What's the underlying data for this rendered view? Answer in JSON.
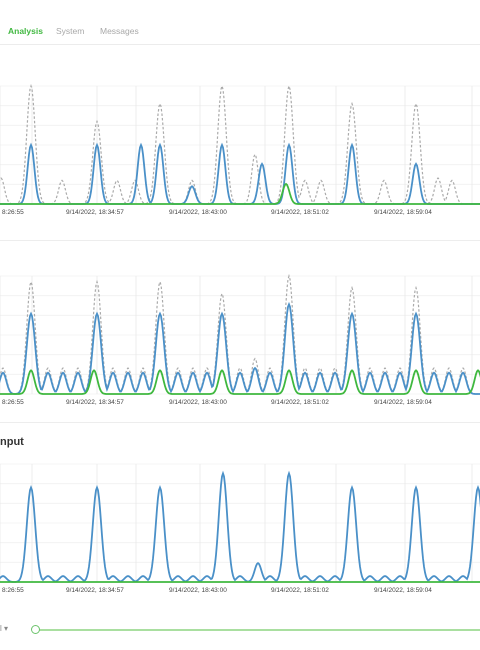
{
  "tabs": [
    {
      "label": "Analysis",
      "active": true
    },
    {
      "label": "System",
      "active": false
    },
    {
      "label": "Messages",
      "active": false
    }
  ],
  "panels": [
    {
      "title": ""
    },
    {
      "title": ""
    },
    {
      "title": "nput"
    }
  ],
  "footer": {
    "control_label": "l ▾"
  },
  "slider": {
    "value": 0
  },
  "colors": {
    "accent": "#41b841",
    "series_blue": "#4a90c8",
    "series_grey": "#aaaaaa",
    "series_green": "#3fb83f"
  },
  "chart_data": [
    {
      "type": "line",
      "x_ticks": [
        "8:26:55",
        "9/14/2022, 18:34:57",
        "9/14/2022, 18:43:00",
        "9/14/2022, 18:51:02",
        "9/14/2022, 18:59:04"
      ],
      "series": [
        {
          "color": "#aaaaaa",
          "dash": true,
          "peaks": [
            [
              1,
              0.22
            ],
            [
              31,
              1.0
            ],
            [
              62,
              0.2
            ],
            [
              97,
              0.7
            ],
            [
              117,
              0.2
            ],
            [
              135,
              0.2
            ],
            [
              160,
              0.85
            ],
            [
              192,
              0.2
            ],
            [
              222,
              1.0
            ],
            [
              255,
              0.42
            ],
            [
              289,
              1.0
            ],
            [
              305,
              0.2
            ],
            [
              321,
              0.2
            ],
            [
              352,
              0.85
            ],
            [
              384,
              0.2
            ],
            [
              416,
              0.85
            ],
            [
              438,
              0.22
            ],
            [
              452,
              0.2
            ]
          ]
        },
        {
          "color": "#4a90c8",
          "dash": false,
          "peaks": [
            [
              31,
              0.5
            ],
            [
              97,
              0.5
            ],
            [
              141,
              0.5
            ],
            [
              160,
              0.5
            ],
            [
              192,
              0.15
            ],
            [
              222,
              0.5
            ],
            [
              262,
              0.34
            ],
            [
              289,
              0.5
            ],
            [
              352,
              0.5
            ],
            [
              416,
              0.34
            ]
          ]
        },
        {
          "color": "#3fb83f",
          "dash": false,
          "peaks": [
            [
              286,
              0.17
            ]
          ]
        }
      ]
    },
    {
      "type": "line",
      "x_ticks": [
        "8:26:55",
        "9/14/2022, 18:34:57",
        "9/14/2022, 18:43:00",
        "9/14/2022, 18:51:02",
        "9/14/2022, 18:59:04"
      ],
      "series": [
        {
          "color": "#aaaaaa",
          "dash": true,
          "peaks": [
            [
              3,
              0.22
            ],
            [
              31,
              0.95
            ],
            [
              48,
              0.22
            ],
            [
              63,
              0.22
            ],
            [
              78,
              0.22
            ],
            [
              97,
              0.95
            ],
            [
              113,
              0.22
            ],
            [
              128,
              0.22
            ],
            [
              143,
              0.22
            ],
            [
              160,
              0.95
            ],
            [
              178,
              0.22
            ],
            [
              193,
              0.22
            ],
            [
              207,
              0.22
            ],
            [
              222,
              0.85
            ],
            [
              240,
              0.22
            ],
            [
              255,
              0.3
            ],
            [
              270,
              0.22
            ],
            [
              289,
              1.0
            ],
            [
              305,
              0.22
            ],
            [
              320,
              0.22
            ],
            [
              335,
              0.22
            ],
            [
              352,
              0.9
            ],
            [
              370,
              0.22
            ],
            [
              385,
              0.22
            ],
            [
              400,
              0.22
            ],
            [
              416,
              0.9
            ],
            [
              434,
              0.22
            ],
            [
              449,
              0.22
            ],
            [
              463,
              0.22
            ]
          ]
        },
        {
          "color": "#4a90c8",
          "dash": false,
          "peaks": [
            [
              3,
              0.18
            ],
            [
              31,
              0.68
            ],
            [
              48,
              0.18
            ],
            [
              63,
              0.18
            ],
            [
              78,
              0.18
            ],
            [
              97,
              0.68
            ],
            [
              113,
              0.18
            ],
            [
              128,
              0.18
            ],
            [
              143,
              0.18
            ],
            [
              160,
              0.68
            ],
            [
              178,
              0.18
            ],
            [
              193,
              0.18
            ],
            [
              207,
              0.18
            ],
            [
              222,
              0.68
            ],
            [
              240,
              0.18
            ],
            [
              255,
              0.22
            ],
            [
              270,
              0.18
            ],
            [
              289,
              0.76
            ],
            [
              305,
              0.18
            ],
            [
              320,
              0.18
            ],
            [
              335,
              0.18
            ],
            [
              352,
              0.68
            ],
            [
              370,
              0.18
            ],
            [
              385,
              0.18
            ],
            [
              400,
              0.18
            ],
            [
              416,
              0.68
            ],
            [
              434,
              0.18
            ],
            [
              449,
              0.18
            ],
            [
              463,
              0.18
            ]
          ]
        },
        {
          "color": "#3fb83f",
          "dash": false,
          "peaks": [
            [
              31,
              0.2
            ],
            [
              94,
              0.2
            ],
            [
              160,
              0.2
            ],
            [
              222,
              0.2
            ],
            [
              289,
              0.2
            ],
            [
              352,
              0.2
            ],
            [
              416,
              0.2
            ],
            [
              478,
              0.2
            ]
          ]
        }
      ]
    },
    {
      "type": "line",
      "x_ticks": [
        "8:26:55",
        "9/14/2022, 18:34:57",
        "9/14/2022, 18:43:00",
        "9/14/2022, 18:51:02",
        "9/14/2022, 18:59:04"
      ],
      "series": [
        {
          "color": "#4a90c8",
          "dash": false,
          "peaks": [
            [
              3,
              0.05
            ],
            [
              31,
              0.8
            ],
            [
              48,
              0.05
            ],
            [
              63,
              0.05
            ],
            [
              78,
              0.05
            ],
            [
              97,
              0.8
            ],
            [
              113,
              0.05
            ],
            [
              128,
              0.05
            ],
            [
              143,
              0.05
            ],
            [
              160,
              0.8
            ],
            [
              178,
              0.05
            ],
            [
              193,
              0.05
            ],
            [
              207,
              0.05
            ],
            [
              223,
              0.92
            ],
            [
              240,
              0.05
            ],
            [
              258,
              0.16
            ],
            [
              270,
              0.05
            ],
            [
              289,
              0.92
            ],
            [
              305,
              0.05
            ],
            [
              320,
              0.05
            ],
            [
              335,
              0.05
            ],
            [
              352,
              0.8
            ],
            [
              370,
              0.05
            ],
            [
              385,
              0.05
            ],
            [
              400,
              0.05
            ],
            [
              416,
              0.8
            ],
            [
              434,
              0.05
            ],
            [
              449,
              0.05
            ],
            [
              463,
              0.05
            ],
            [
              478,
              0.8
            ]
          ]
        },
        {
          "color": "#3fb83f",
          "dash": false,
          "peaks": []
        }
      ]
    }
  ]
}
